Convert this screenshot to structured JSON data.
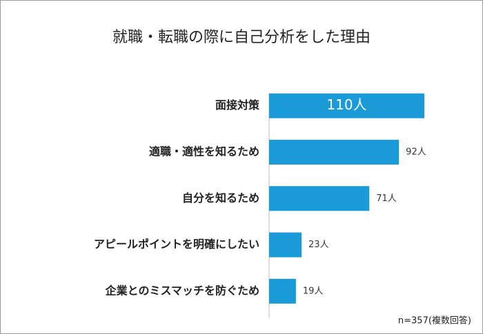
{
  "chart_data": {
    "type": "bar",
    "orientation": "horizontal",
    "title": "就職・転職の際に自己分析をした理由",
    "categories": [
      "面接対策",
      "適職・適性を知るため",
      "自分を知るため",
      "アピールポイントを明確にしたい",
      "企業とのミスマッチを防ぐため"
    ],
    "values": [
      110,
      92,
      71,
      23,
      19
    ],
    "value_labels": [
      "110人",
      "92人",
      "71人",
      "23人",
      "19人"
    ],
    "color": "#1a9ad6",
    "note": "n=357(複数回答)"
  }
}
